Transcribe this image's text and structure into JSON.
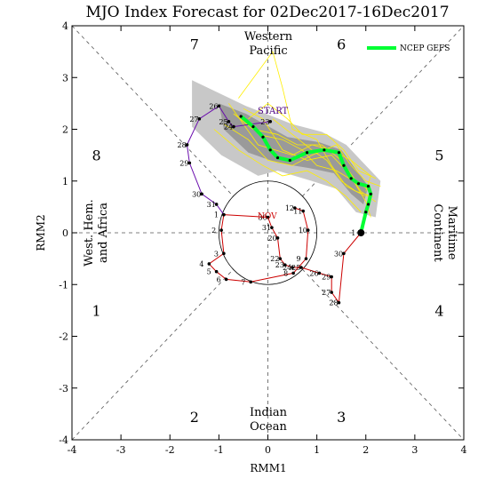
{
  "chart_data": {
    "type": "line",
    "title": "MJO Index Forecast for 02Dec2017-16Dec2017",
    "xlabel": "RMM1",
    "ylabel": "RMM2",
    "xlim": [
      -4,
      4
    ],
    "ylim": [
      -4,
      4
    ],
    "x_ticks": [
      -4,
      -3,
      -2,
      -1,
      0,
      1,
      2,
      3,
      4
    ],
    "y_ticks": [
      -4,
      -3,
      -2,
      -1,
      0,
      1,
      2,
      3,
      4
    ],
    "phase_numbers": [
      {
        "label": "1",
        "x": -3.5,
        "y": -1.5
      },
      {
        "label": "2",
        "x": -1.5,
        "y": -3.55
      },
      {
        "label": "3",
        "x": 1.5,
        "y": -3.55
      },
      {
        "label": "4",
        "x": 3.5,
        "y": -1.5
      },
      {
        "label": "5",
        "x": 3.5,
        "y": 1.5
      },
      {
        "label": "6",
        "x": 1.5,
        "y": 3.65
      },
      {
        "label": "7",
        "x": -1.5,
        "y": 3.65
      },
      {
        "label": "8",
        "x": -3.5,
        "y": 1.5
      }
    ],
    "regions": {
      "top": [
        "Western",
        "Pacific"
      ],
      "bottom": [
        "Indian",
        "Ocean"
      ],
      "left": [
        "West. Hem.",
        "and Africa"
      ],
      "right": [
        "Maritime",
        "Continent"
      ]
    },
    "legend": {
      "label": "NCEP GEFS",
      "color": "#00ff33",
      "position": "top-right"
    },
    "start_label": "START",
    "nov_label": "NOV",
    "observed_segments": [
      {
        "color": "#cc0000",
        "points": [
          {
            "x": 0.55,
            "y": 0.48,
            "label": "12"
          },
          {
            "x": 0.72,
            "y": 0.42,
            "label": "11"
          },
          {
            "x": 0.82,
            "y": 0.05,
            "label": "10"
          },
          {
            "x": 0.78,
            "y": -0.5,
            "label": "9"
          },
          {
            "x": 0.52,
            "y": -0.78,
            "label": "8"
          },
          {
            "x": -0.35,
            "y": -0.95,
            "label": "7"
          },
          {
            "x": -0.85,
            "y": -0.9,
            "label": "6"
          },
          {
            "x": -1.05,
            "y": -0.75,
            "label": "5"
          },
          {
            "x": -1.2,
            "y": -0.6,
            "label": "4"
          },
          {
            "x": -0.9,
            "y": -0.4,
            "label": "3"
          },
          {
            "x": -0.95,
            "y": 0.05,
            "label": "2"
          },
          {
            "x": -0.9,
            "y": 0.35,
            "label": "1"
          },
          {
            "x": 0.0,
            "y": 0.3,
            "label": "30"
          },
          {
            "x": 0.08,
            "y": 0.1,
            "label": "31"
          },
          {
            "x": 0.2,
            "y": -0.1,
            "label": "20"
          },
          {
            "x": 0.25,
            "y": -0.5,
            "label": "22"
          },
          {
            "x": 0.35,
            "y": -0.62,
            "label": "23"
          },
          {
            "x": 0.5,
            "y": -0.67,
            "label": "24"
          },
          {
            "x": 0.68,
            "y": -0.67,
            "label": "25"
          },
          {
            "x": 1.05,
            "y": -0.78,
            "label": "26"
          },
          {
            "x": 1.3,
            "y": -0.85,
            "label": "29"
          },
          {
            "x": 1.3,
            "y": -1.15,
            "label": "27"
          },
          {
            "x": 1.45,
            "y": -1.35,
            "label": "28"
          },
          {
            "x": 1.55,
            "y": -0.4,
            "label": "30"
          },
          {
            "x": 1.9,
            "y": 0.0,
            "label": "1"
          }
        ]
      },
      {
        "color": "#6a0dad",
        "points": [
          {
            "x": -0.9,
            "y": 0.35,
            "label": ""
          },
          {
            "x": -1.05,
            "y": 0.55,
            "label": "31"
          },
          {
            "x": -1.35,
            "y": 0.75,
            "label": "30"
          },
          {
            "x": -1.6,
            "y": 1.35,
            "label": "29"
          },
          {
            "x": -1.65,
            "y": 1.7,
            "label": "28"
          },
          {
            "x": -1.4,
            "y": 2.2,
            "label": "27"
          },
          {
            "x": -1.0,
            "y": 2.45,
            "label": "26"
          },
          {
            "x": -0.8,
            "y": 2.15,
            "label": "25"
          },
          {
            "x": -0.7,
            "y": 2.05,
            "label": "24"
          },
          {
            "x": 0.05,
            "y": 2.15,
            "label": "23"
          }
        ]
      }
    ],
    "forecast_mean": [
      {
        "x": -0.55,
        "y": 2.25
      },
      {
        "x": -0.3,
        "y": 2.05
      },
      {
        "x": -0.1,
        "y": 1.85
      },
      {
        "x": 0.05,
        "y": 1.6
      },
      {
        "x": 0.2,
        "y": 1.45
      },
      {
        "x": 0.45,
        "y": 1.4
      },
      {
        "x": 0.8,
        "y": 1.55
      },
      {
        "x": 1.15,
        "y": 1.6
      },
      {
        "x": 1.45,
        "y": 1.55
      },
      {
        "x": 1.55,
        "y": 1.3
      },
      {
        "x": 1.7,
        "y": 1.05
      },
      {
        "x": 1.85,
        "y": 0.95
      },
      {
        "x": 2.05,
        "y": 0.9
      },
      {
        "x": 2.1,
        "y": 0.75
      },
      {
        "x": 2.05,
        "y": 0.55
      },
      {
        "x": 2.0,
        "y": 0.4
      },
      {
        "x": 1.9,
        "y": 0.0
      }
    ],
    "spread_outer": [
      {
        "x": -1.55,
        "y": 2.95
      },
      {
        "x": -0.45,
        "y": 2.45
      },
      {
        "x": 0.5,
        "y": 2.1
      },
      {
        "x": 1.1,
        "y": 1.95
      },
      {
        "x": 1.6,
        "y": 1.7
      },
      {
        "x": 2.3,
        "y": 1.0
      },
      {
        "x": 2.2,
        "y": 0.3
      },
      {
        "x": 1.8,
        "y": 0.4
      },
      {
        "x": 1.4,
        "y": 0.85
      },
      {
        "x": 0.9,
        "y": 1.0
      },
      {
        "x": 0.2,
        "y": 1.2
      },
      {
        "x": -0.2,
        "y": 1.1
      },
      {
        "x": -0.95,
        "y": 1.5
      },
      {
        "x": -1.55,
        "y": 2.05
      }
    ],
    "spread_inner": [
      {
        "x": -1.0,
        "y": 2.5
      },
      {
        "x": -0.45,
        "y": 2.3
      },
      {
        "x": 0.4,
        "y": 1.85
      },
      {
        "x": 1.05,
        "y": 1.75
      },
      {
        "x": 1.5,
        "y": 1.6
      },
      {
        "x": 2.05,
        "y": 0.9
      },
      {
        "x": 1.95,
        "y": 0.55
      },
      {
        "x": 1.7,
        "y": 0.75
      },
      {
        "x": 1.35,
        "y": 1.15
      },
      {
        "x": 0.85,
        "y": 1.25
      },
      {
        "x": 0.2,
        "y": 1.35
      },
      {
        "x": -0.4,
        "y": 1.55
      },
      {
        "x": -0.9,
        "y": 2.0
      }
    ],
    "ensemble_members": [
      [
        {
          "x": -0.7,
          "y": 2.3
        },
        {
          "x": -0.3,
          "y": 2.0
        },
        {
          "x": 0.2,
          "y": 1.9
        },
        {
          "x": 0.6,
          "y": 1.7
        },
        {
          "x": 1.1,
          "y": 1.7
        },
        {
          "x": 1.5,
          "y": 1.4
        },
        {
          "x": 1.8,
          "y": 1.0
        },
        {
          "x": 2.1,
          "y": 0.8
        },
        {
          "x": 2.0,
          "y": 0.5
        }
      ],
      [
        {
          "x": -0.5,
          "y": 2.4
        },
        {
          "x": -0.1,
          "y": 2.2
        },
        {
          "x": 0.3,
          "y": 1.6
        },
        {
          "x": 0.8,
          "y": 1.4
        },
        {
          "x": 1.3,
          "y": 1.5
        },
        {
          "x": 1.6,
          "y": 1.2
        },
        {
          "x": 1.9,
          "y": 0.8
        },
        {
          "x": 2.2,
          "y": 0.6
        }
      ],
      [
        {
          "x": -0.9,
          "y": 2.1
        },
        {
          "x": -0.4,
          "y": 1.8
        },
        {
          "x": 0.0,
          "y": 1.4
        },
        {
          "x": 0.5,
          "y": 1.3
        },
        {
          "x": 0.9,
          "y": 1.5
        },
        {
          "x": 1.4,
          "y": 1.7
        },
        {
          "x": 1.7,
          "y": 1.3
        },
        {
          "x": 2.0,
          "y": 1.0
        },
        {
          "x": 2.3,
          "y": 0.9
        }
      ],
      [
        {
          "x": -0.6,
          "y": 2.6
        },
        {
          "x": 0.1,
          "y": 3.5
        },
        {
          "x": 0.3,
          "y": 2.8
        },
        {
          "x": 0.5,
          "y": 2.0
        },
        {
          "x": 1.0,
          "y": 1.8
        },
        {
          "x": 1.3,
          "y": 1.3
        },
        {
          "x": 1.6,
          "y": 0.9
        },
        {
          "x": 2.0,
          "y": 0.7
        }
      ],
      [
        {
          "x": -0.4,
          "y": 2.2
        },
        {
          "x": 0.0,
          "y": 2.5
        },
        {
          "x": 0.4,
          "y": 2.2
        },
        {
          "x": 0.7,
          "y": 1.9
        },
        {
          "x": 1.2,
          "y": 1.9
        },
        {
          "x": 1.55,
          "y": 1.6
        },
        {
          "x": 1.85,
          "y": 1.2
        },
        {
          "x": 2.2,
          "y": 1.05
        }
      ],
      [
        {
          "x": -1.1,
          "y": 2.0
        },
        {
          "x": -0.6,
          "y": 1.6
        },
        {
          "x": -0.1,
          "y": 1.3
        },
        {
          "x": 0.3,
          "y": 1.1
        },
        {
          "x": 0.8,
          "y": 1.2
        },
        {
          "x": 1.2,
          "y": 1.0
        },
        {
          "x": 1.6,
          "y": 0.7
        },
        {
          "x": 1.9,
          "y": 0.4
        }
      ],
      [
        {
          "x": -0.2,
          "y": 1.9
        },
        {
          "x": 0.3,
          "y": 1.8
        },
        {
          "x": 0.7,
          "y": 1.6
        },
        {
          "x": 1.0,
          "y": 1.3
        },
        {
          "x": 1.4,
          "y": 1.2
        },
        {
          "x": 1.75,
          "y": 1.0
        },
        {
          "x": 2.0,
          "y": 0.6
        },
        {
          "x": 2.1,
          "y": 0.3
        }
      ],
      [
        {
          "x": -0.8,
          "y": 2.5
        },
        {
          "x": -0.2,
          "y": 1.7
        },
        {
          "x": 0.5,
          "y": 1.5
        },
        {
          "x": 0.9,
          "y": 1.7
        },
        {
          "x": 1.3,
          "y": 1.6
        },
        {
          "x": 1.7,
          "y": 1.4
        },
        {
          "x": 2.1,
          "y": 1.1
        },
        {
          "x": 2.0,
          "y": 0.8
        }
      ],
      [
        {
          "x": 0.1,
          "y": 2.2
        },
        {
          "x": 0.5,
          "y": 1.9
        },
        {
          "x": 0.9,
          "y": 1.6
        },
        {
          "x": 1.2,
          "y": 1.4
        },
        {
          "x": 1.5,
          "y": 1.0
        },
        {
          "x": 1.8,
          "y": 0.8
        },
        {
          "x": 2.15,
          "y": 0.7
        }
      ]
    ]
  }
}
